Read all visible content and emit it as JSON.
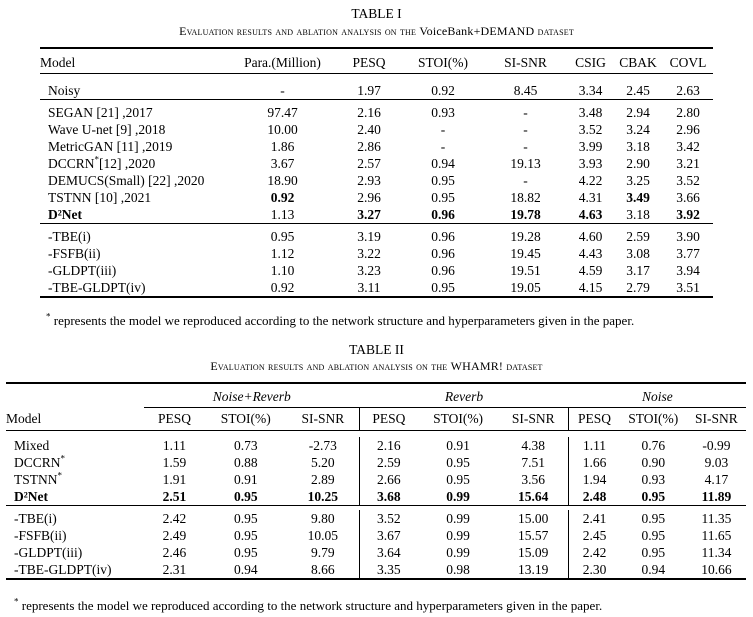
{
  "table1": {
    "number": "TABLE I",
    "caption_pre": "Evaluation results and ablation analysis on the ",
    "caption_dataset": "VoiceBank+DEMAND",
    "caption_post": " dataset",
    "columns": [
      "Model",
      "Para.(Million)",
      "PESQ",
      "STOI(%)",
      "SI-SNR",
      "CSIG",
      "CBAK",
      "COVL"
    ],
    "groups": [
      [
        {
          "cells": [
            "Noisy",
            "-",
            "1.97",
            "0.92",
            "8.45",
            "3.34",
            "2.45",
            "2.63"
          ]
        }
      ],
      [
        {
          "cells": [
            "SEGAN [21] ,2017",
            "97.47",
            "2.16",
            "0.93",
            "-",
            "3.48",
            "2.94",
            "2.80"
          ]
        },
        {
          "cells": [
            "Wave U-net [9] ,2018",
            "10.00",
            "2.40",
            "-",
            "-",
            "3.52",
            "3.24",
            "2.96"
          ]
        },
        {
          "cells": [
            "MetricGAN [11] ,2019",
            "1.86",
            "2.86",
            "-",
            "-",
            "3.99",
            "3.18",
            "3.42"
          ]
        },
        {
          "cells": [
            "DCCRN*[12] ,2020",
            "3.67",
            "2.57",
            "0.94",
            "19.13",
            "3.93",
            "2.90",
            "3.21"
          ]
        },
        {
          "cells": [
            "DEMUCS(Small) [22] ,2020",
            "18.90",
            "2.93",
            "0.95",
            "-",
            "4.22",
            "3.25",
            "3.52"
          ]
        },
        {
          "cells": [
            "TSTNN [10] ,2021",
            "0.92",
            "2.96",
            "0.95",
            "18.82",
            "4.31",
            "3.49",
            "3.66"
          ],
          "bold": [
            1,
            6
          ]
        },
        {
          "cells": [
            "D²Net",
            "1.13",
            "3.27",
            "0.96",
            "19.78",
            "4.63",
            "3.18",
            "3.92"
          ],
          "bold": [
            0,
            2,
            3,
            4,
            5,
            7
          ]
        }
      ],
      [
        {
          "cells": [
            "-TBE(i)",
            "0.95",
            "3.19",
            "0.96",
            "19.28",
            "4.60",
            "2.59",
            "3.90"
          ]
        },
        {
          "cells": [
            "-FSFB(ii)",
            "1.12",
            "3.22",
            "0.96",
            "19.45",
            "4.43",
            "3.08",
            "3.77"
          ]
        },
        {
          "cells": [
            "-GLDPT(iii)",
            "1.10",
            "3.23",
            "0.96",
            "19.51",
            "4.59",
            "3.17",
            "3.94"
          ]
        },
        {
          "cells": [
            "-TBE-GLDPT(iv)",
            "0.92",
            "3.11",
            "0.95",
            "19.05",
            "4.15",
            "2.79",
            "3.51"
          ]
        }
      ]
    ],
    "footnote": "represents the model we reproduced according to the network structure and hyperparameters given in the paper."
  },
  "table2": {
    "number": "TABLE II",
    "caption_pre": "Evaluation results and ablation analysis on the ",
    "caption_dataset": "WHAMR!",
    "caption_post": " dataset",
    "group_labels": [
      "Noise+Reverb",
      "Reverb",
      "Noise"
    ],
    "columns": [
      "Model",
      "PESQ",
      "STOI(%)",
      "SI-SNR",
      "PESQ",
      "STOI(%)",
      "SI-SNR",
      "PESQ",
      "STOI(%)",
      "SI-SNR"
    ],
    "groups": [
      [
        {
          "cells": [
            "Mixed",
            "1.11",
            "0.73",
            "-2.73",
            "2.16",
            "0.91",
            "4.38",
            "1.11",
            "0.76",
            "-0.99"
          ]
        },
        {
          "cells": [
            "DCCRN*",
            "1.59",
            "0.88",
            "5.20",
            "2.59",
            "0.95",
            "7.51",
            "1.66",
            "0.90",
            "9.03"
          ]
        },
        {
          "cells": [
            "TSTNN*",
            "1.91",
            "0.91",
            "2.89",
            "2.66",
            "0.95",
            "3.56",
            "1.94",
            "0.93",
            "4.17"
          ]
        },
        {
          "cells": [
            "D²Net",
            "2.51",
            "0.95",
            "10.25",
            "3.68",
            "0.99",
            "15.64",
            "2.48",
            "0.95",
            "11.89"
          ],
          "bold": [
            0,
            1,
            2,
            3,
            4,
            5,
            6,
            7,
            8,
            9
          ]
        }
      ],
      [
        {
          "cells": [
            "-TBE(i)",
            "2.42",
            "0.95",
            "9.80",
            "3.52",
            "0.99",
            "15.00",
            "2.41",
            "0.95",
            "11.35"
          ]
        },
        {
          "cells": [
            "-FSFB(ii)",
            "2.49",
            "0.95",
            "10.05",
            "3.67",
            "0.99",
            "15.57",
            "2.45",
            "0.95",
            "11.65"
          ]
        },
        {
          "cells": [
            "-GLDPT(iii)",
            "2.46",
            "0.95",
            "9.79",
            "3.64",
            "0.99",
            "15.09",
            "2.42",
            "0.95",
            "11.34"
          ]
        },
        {
          "cells": [
            "-TBE-GLDPT(iv)",
            "2.31",
            "0.94",
            "8.66",
            "3.35",
            "0.98",
            "13.19",
            "2.30",
            "0.94",
            "10.66"
          ]
        }
      ]
    ],
    "footnote": "represents the model we reproduced according to the network structure and hyperparameters given in the paper."
  }
}
